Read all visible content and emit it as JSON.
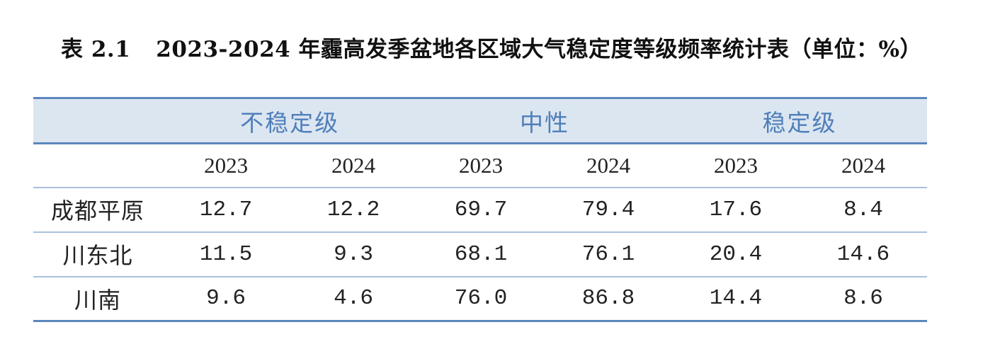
{
  "caption": {
    "number": "表 2.1",
    "title": "2023-2024 年霾高发季盆地各区域大气稳定度等级频率统计表（单位：%）"
  },
  "table": {
    "groups": [
      "不稳定级",
      "中性",
      "稳定级"
    ],
    "years": [
      "2023",
      "2024",
      "2023",
      "2024",
      "2023",
      "2024"
    ],
    "rows": [
      {
        "region": "成都平原",
        "values": [
          "12.7",
          "12.2",
          "69.7",
          "79.4",
          "17.6",
          "8.4"
        ]
      },
      {
        "region": "川东北",
        "values": [
          "11.5",
          "9.3",
          "68.1",
          "76.1",
          "20.4",
          "14.6"
        ]
      },
      {
        "region": "川南",
        "values": [
          "9.6",
          "4.6",
          "76.0",
          "86.8",
          "14.4",
          "8.6"
        ]
      }
    ]
  }
}
